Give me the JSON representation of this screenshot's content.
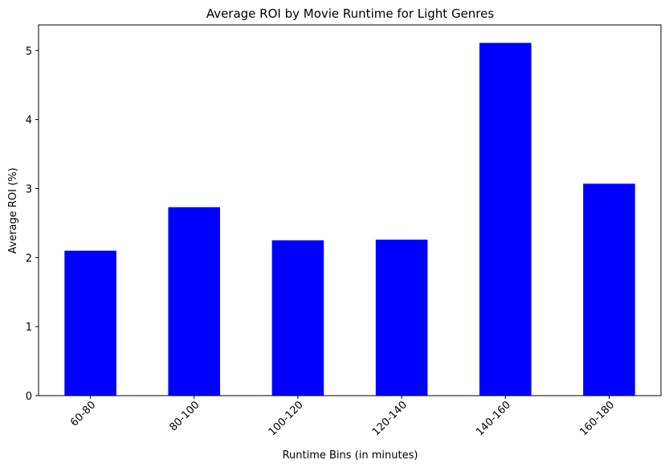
{
  "chart_data": {
    "type": "bar",
    "title": "Average ROI by Movie Runtime for Light Genres",
    "xlabel": "Runtime Bins (in minutes)",
    "ylabel": "Average ROI (%)",
    "categories": [
      "60-80",
      "80-100",
      "100-120",
      "120-140",
      "140-160",
      "160-180"
    ],
    "values": [
      2.1,
      2.73,
      2.25,
      2.26,
      5.11,
      3.07
    ],
    "ylim": [
      0,
      5.37
    ],
    "yticks": [
      0,
      1,
      2,
      3,
      4,
      5
    ],
    "bar_color": "#0000ff",
    "grid": false,
    "legend": "none",
    "xtick_rotation_deg": 45
  }
}
